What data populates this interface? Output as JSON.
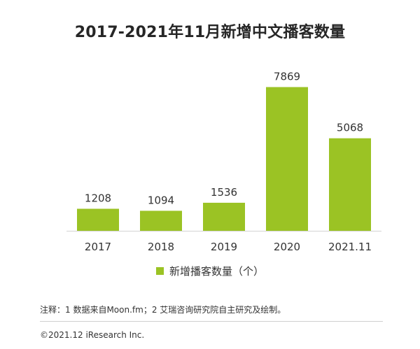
{
  "chart_data": {
    "type": "bar",
    "title": "2017-2021年11月新增中文播客数量",
    "categories": [
      "2017",
      "2018",
      "2019",
      "2020",
      "2021.11"
    ],
    "series": [
      {
        "name": "新增播客数量（个）",
        "values": [
          1208,
          1094,
          1536,
          7869,
          5068
        ],
        "color": "#9bc324"
      }
    ],
    "data_labels": [
      "1208",
      "1094",
      "1536",
      "7869",
      "5068"
    ],
    "ylim": [
      0,
      9000
    ],
    "grid": false,
    "legend_position": "bottom"
  },
  "footnote": "注释：1 数据来自Moon.fm；2 艾瑞咨询研究院自主研究及绘制。",
  "copyright": "©2021.12 iResearch Inc.",
  "colors": {
    "axis": "#d4d4d4",
    "text": "#333333"
  }
}
